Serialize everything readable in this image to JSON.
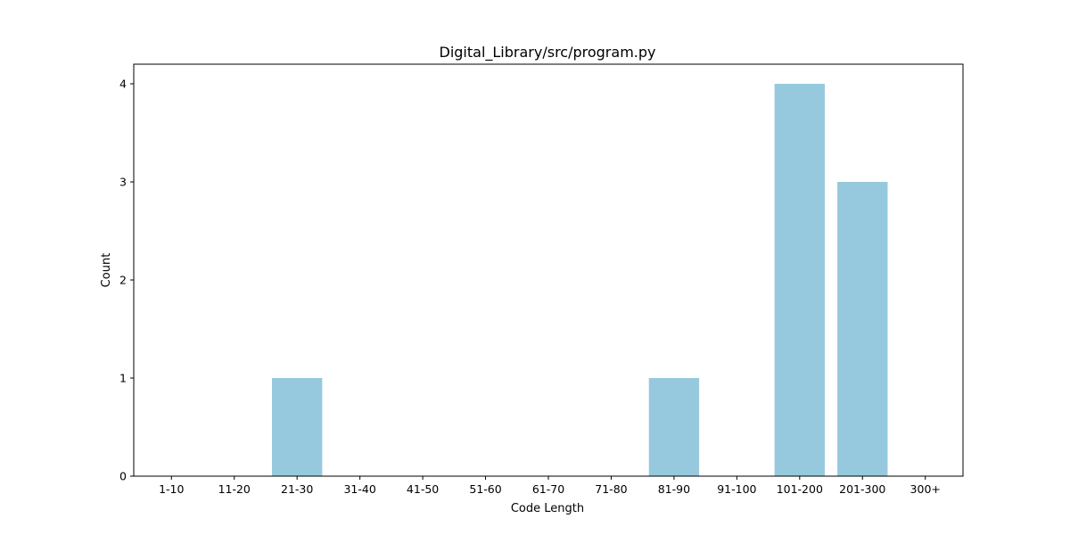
{
  "chart_data": {
    "type": "bar",
    "title": "Digital_Library/src/program.py",
    "xlabel": "Code Length",
    "ylabel": "Count",
    "categories": [
      "1-10",
      "11-20",
      "21-30",
      "31-40",
      "41-50",
      "51-60",
      "61-70",
      "71-80",
      "81-90",
      "91-100",
      "101-200",
      "201-300",
      "300+"
    ],
    "values": [
      0,
      0,
      1,
      0,
      0,
      0,
      0,
      0,
      1,
      0,
      4,
      3,
      0
    ],
    "ylim": [
      0,
      4.2
    ],
    "yticks": [
      0,
      1,
      2,
      3,
      4
    ],
    "grid": false,
    "legend": false,
    "bar_color": "#96c9dd"
  }
}
